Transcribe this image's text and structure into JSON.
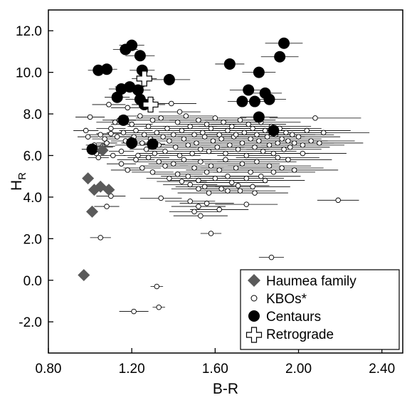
{
  "chart_data": {
    "type": "scatter",
    "xlabel": "B-R",
    "ylabel_main": "H",
    "ylabel_sub": "R",
    "xlim": [
      0.8,
      2.5
    ],
    "ylim": [
      -3.5,
      13.0
    ],
    "x_ticks": [
      {
        "value": 0.8,
        "label": "0.80"
      },
      {
        "value": 1.2,
        "label": "1.20"
      },
      {
        "value": 1.6,
        "label": "1.60"
      },
      {
        "value": 2.0,
        "label": "2.00"
      },
      {
        "value": 2.4,
        "label": "2.40"
      }
    ],
    "y_ticks": [
      {
        "value": 12.0,
        "label": "12.0"
      },
      {
        "value": 10.0,
        "label": "10.0"
      },
      {
        "value": 8.0,
        "label": "8.0"
      },
      {
        "value": 6.0,
        "label": "6.0"
      },
      {
        "value": 4.0,
        "label": "4.0"
      },
      {
        "value": 2.0,
        "label": "2.0"
      },
      {
        "value": 0.0,
        "label": "0.0"
      },
      {
        "value": -2.0,
        "label": "-2.0"
      }
    ],
    "legend_position": "bottom-right",
    "series": [
      {
        "name": "KBOs*",
        "marker": "open-circle",
        "color": "#000000",
        "points": [
          [
            0.98,
            7.2,
            0.06
          ],
          [
            0.99,
            6.9,
            0.05
          ],
          [
            1.0,
            7.85,
            0.07
          ],
          [
            1.01,
            6.3,
            0.05
          ],
          [
            1.02,
            6.5,
            0.04
          ],
          [
            1.03,
            6.1,
            0.04
          ],
          [
            1.04,
            5.9,
            0.05
          ],
          [
            1.05,
            7.0,
            0.06
          ],
          [
            1.06,
            6.4,
            0.05
          ],
          [
            1.07,
            6.8,
            0.06
          ],
          [
            1.08,
            6.6,
            0.05
          ],
          [
            1.09,
            8.45,
            0.08
          ],
          [
            1.1,
            7.3,
            0.07
          ],
          [
            1.11,
            6.0,
            0.06
          ],
          [
            1.12,
            7.6,
            0.09
          ],
          [
            1.13,
            6.9,
            0.07
          ],
          [
            1.14,
            7.7,
            0.08
          ],
          [
            1.15,
            6.2,
            0.06
          ],
          [
            1.16,
            7.1,
            0.08
          ],
          [
            1.17,
            6.7,
            0.07
          ],
          [
            1.18,
            8.3,
            0.08
          ],
          [
            1.19,
            6.5,
            0.07
          ],
          [
            1.2,
            7.5,
            0.1
          ],
          [
            1.21,
            6.9,
            0.09
          ],
          [
            1.22,
            7.2,
            0.08
          ],
          [
            1.23,
            6.0,
            0.07
          ],
          [
            1.24,
            7.9,
            0.1
          ],
          [
            1.25,
            6.6,
            0.08
          ],
          [
            1.26,
            7.0,
            0.09
          ],
          [
            1.27,
            6.3,
            0.08
          ],
          [
            1.28,
            7.4,
            0.1
          ],
          [
            1.29,
            6.8,
            0.09
          ],
          [
            1.3,
            7.7,
            0.11
          ],
          [
            1.31,
            6.1,
            0.08
          ],
          [
            1.32,
            7.1,
            0.1
          ],
          [
            1.33,
            6.5,
            0.09
          ],
          [
            1.34,
            7.8,
            0.12
          ],
          [
            1.35,
            6.9,
            0.1
          ],
          [
            1.36,
            6.2,
            0.09
          ],
          [
            1.37,
            7.3,
            0.11
          ],
          [
            1.38,
            6.7,
            0.1
          ],
          [
            1.39,
            8.5,
            0.12
          ],
          [
            1.4,
            7.0,
            0.12
          ],
          [
            1.41,
            6.4,
            0.1
          ],
          [
            1.42,
            7.6,
            0.12
          ],
          [
            1.43,
            6.0,
            0.1
          ],
          [
            1.44,
            7.2,
            0.12
          ],
          [
            1.45,
            6.8,
            0.11
          ],
          [
            1.46,
            7.9,
            0.13
          ],
          [
            1.47,
            6.5,
            0.11
          ],
          [
            1.48,
            7.4,
            0.13
          ],
          [
            1.49,
            6.1,
            0.11
          ],
          [
            1.5,
            7.0,
            0.13
          ],
          [
            1.51,
            6.6,
            0.12
          ],
          [
            1.52,
            7.7,
            0.14
          ],
          [
            1.53,
            6.3,
            0.12
          ],
          [
            1.54,
            7.1,
            0.14
          ],
          [
            1.55,
            6.9,
            0.13
          ],
          [
            1.56,
            7.5,
            0.14
          ],
          [
            1.57,
            6.2,
            0.12
          ],
          [
            1.58,
            7.3,
            0.15
          ],
          [
            1.59,
            6.7,
            0.13
          ],
          [
            1.6,
            7.8,
            0.15
          ],
          [
            1.61,
            6.4,
            0.13
          ],
          [
            1.62,
            7.0,
            0.15
          ],
          [
            1.63,
            6.8,
            0.14
          ],
          [
            1.64,
            7.6,
            0.16
          ],
          [
            1.65,
            6.1,
            0.13
          ],
          [
            1.66,
            7.2,
            0.16
          ],
          [
            1.67,
            6.5,
            0.14
          ],
          [
            1.68,
            7.4,
            0.16
          ],
          [
            1.69,
            6.9,
            0.15
          ],
          [
            1.7,
            7.0,
            0.17
          ],
          [
            1.71,
            6.3,
            0.15
          ],
          [
            1.72,
            7.7,
            0.17
          ],
          [
            1.73,
            6.6,
            0.15
          ],
          [
            1.74,
            7.1,
            0.17
          ],
          [
            1.75,
            6.0,
            0.14
          ],
          [
            1.76,
            7.5,
            0.18
          ],
          [
            1.77,
            6.8,
            0.16
          ],
          [
            1.78,
            7.3,
            0.18
          ],
          [
            1.79,
            6.4,
            0.16
          ],
          [
            1.8,
            7.0,
            0.18
          ],
          [
            1.81,
            6.7,
            0.17
          ],
          [
            1.82,
            7.6,
            0.19
          ],
          [
            1.83,
            6.2,
            0.16
          ],
          [
            1.84,
            7.2,
            0.19
          ],
          [
            1.85,
            6.9,
            0.18
          ],
          [
            1.86,
            6.5,
            0.17
          ],
          [
            1.87,
            7.4,
            0.19
          ],
          [
            1.88,
            6.1,
            0.17
          ],
          [
            1.89,
            7.0,
            0.19
          ],
          [
            1.9,
            6.6,
            0.18
          ],
          [
            1.91,
            7.3,
            0.2
          ],
          [
            1.92,
            6.8,
            0.19
          ],
          [
            1.93,
            6.3,
            0.18
          ],
          [
            1.94,
            7.1,
            0.2
          ],
          [
            1.95,
            6.7,
            0.19
          ],
          [
            1.96,
            6.4,
            0.19
          ],
          [
            1.97,
            7.0,
            0.2
          ],
          [
            1.98,
            6.6,
            0.19
          ],
          [
            2.0,
            6.9,
            0.2
          ],
          [
            2.02,
            6.5,
            0.2
          ],
          [
            2.04,
            7.2,
            0.21
          ],
          [
            2.06,
            6.7,
            0.21
          ],
          [
            2.08,
            7.8,
            0.22
          ],
          [
            2.1,
            6.6,
            0.21
          ],
          [
            2.12,
            7.1,
            0.22
          ],
          [
            1.15,
            5.6,
            0.07
          ],
          [
            1.18,
            5.3,
            0.08
          ],
          [
            1.22,
            5.8,
            0.09
          ],
          [
            1.25,
            5.4,
            0.09
          ],
          [
            1.28,
            5.9,
            0.1
          ],
          [
            1.3,
            5.2,
            0.1
          ],
          [
            1.33,
            5.7,
            0.11
          ],
          [
            1.36,
            5.5,
            0.11
          ],
          [
            1.38,
            4.9,
            0.11
          ],
          [
            1.4,
            5.6,
            0.12
          ],
          [
            1.42,
            5.1,
            0.12
          ],
          [
            1.45,
            5.8,
            0.13
          ],
          [
            1.47,
            5.0,
            0.13
          ],
          [
            1.48,
            4.6,
            0.13
          ],
          [
            1.5,
            5.4,
            0.14
          ],
          [
            1.52,
            4.8,
            0.14
          ],
          [
            1.53,
            5.7,
            0.14
          ],
          [
            1.55,
            4.5,
            0.14
          ],
          [
            1.56,
            5.2,
            0.15
          ],
          [
            1.57,
            4.2,
            0.15
          ],
          [
            1.58,
            5.5,
            0.15
          ],
          [
            1.6,
            4.9,
            0.15
          ],
          [
            1.62,
            5.3,
            0.16
          ],
          [
            1.63,
            4.4,
            0.16
          ],
          [
            1.65,
            5.8,
            0.16
          ],
          [
            1.66,
            5.0,
            0.16
          ],
          [
            1.68,
            4.7,
            0.17
          ],
          [
            1.7,
            5.4,
            0.17
          ],
          [
            1.72,
            4.3,
            0.17
          ],
          [
            1.73,
            5.6,
            0.18
          ],
          [
            1.75,
            4.9,
            0.18
          ],
          [
            1.77,
            5.2,
            0.18
          ],
          [
            1.78,
            4.5,
            0.18
          ],
          [
            1.8,
            5.7,
            0.19
          ],
          [
            1.82,
            5.0,
            0.19
          ],
          [
            1.84,
            4.8,
            0.19
          ],
          [
            1.86,
            5.5,
            0.2
          ],
          [
            1.88,
            5.2,
            0.2
          ],
          [
            1.9,
            5.9,
            0.2
          ],
          [
            1.92,
            5.4,
            0.2
          ],
          [
            1.95,
            5.8,
            0.21
          ],
          [
            1.98,
            5.3,
            0.21
          ],
          [
            2.02,
            6.1,
            0.21
          ],
          [
            1.08,
            3.55,
            0.06
          ],
          [
            1.1,
            4.05,
            0.07
          ],
          [
            1.34,
            3.95,
            0.1
          ],
          [
            1.48,
            3.8,
            0.12
          ],
          [
            1.5,
            3.3,
            0.12
          ],
          [
            1.52,
            3.55,
            0.13
          ],
          [
            1.53,
            3.1,
            0.13
          ],
          [
            1.56,
            3.7,
            0.13
          ],
          [
            1.62,
            3.4,
            0.14
          ],
          [
            1.75,
            3.65,
            0.15
          ],
          [
            1.52,
            4.4,
            0.13
          ],
          [
            1.66,
            4.3,
            0.15
          ],
          [
            1.71,
            4.55,
            0.15
          ],
          [
            1.79,
            4.2,
            0.16
          ],
          [
            1.44,
            4.75,
            0.12
          ],
          [
            1.05,
            2.05,
            0.05
          ],
          [
            1.58,
            2.25,
            0.05
          ],
          [
            1.87,
            1.1,
            0.06
          ],
          [
            2.19,
            3.85,
            0.1
          ],
          [
            1.32,
            -0.3,
            0.03
          ],
          [
            1.33,
            -1.3,
            0.03
          ],
          [
            1.21,
            -1.5,
            0.07
          ],
          [
            1.06,
            6.45,
            0.06
          ],
          [
            1.1,
            7.05,
            0.07
          ],
          [
            1.43,
            8.1,
            0.1
          ]
        ]
      },
      {
        "name": "Haumea family",
        "marker": "diamond",
        "color": "#5a5a5a",
        "points": [
          [
            0.99,
            4.9
          ],
          [
            1.01,
            3.3
          ],
          [
            1.02,
            4.35
          ],
          [
            1.05,
            4.5
          ],
          [
            1.09,
            4.35
          ],
          [
            0.97,
            0.25
          ],
          [
            1.06,
            6.25
          ]
        ]
      },
      {
        "name": "Centaurs",
        "marker": "filled-circle",
        "color": "#000000",
        "points": [
          [
            1.04,
            10.1,
            0.05
          ],
          [
            1.08,
            10.15,
            0.05
          ],
          [
            1.17,
            11.1,
            0.06
          ],
          [
            1.2,
            11.3,
            0.06
          ],
          [
            1.24,
            10.8,
            0.07
          ],
          [
            1.25,
            10.1,
            0.06
          ],
          [
            1.15,
            9.2,
            0.06
          ],
          [
            1.19,
            9.3,
            0.07
          ],
          [
            1.23,
            9.15,
            0.06
          ],
          [
            1.13,
            8.8,
            0.06
          ],
          [
            1.24,
            8.7,
            0.07
          ],
          [
            1.26,
            8.45,
            0.06
          ],
          [
            1.16,
            7.7,
            0.06
          ],
          [
            1.38,
            9.65,
            0.1
          ],
          [
            1.01,
            6.3,
            0.05
          ],
          [
            1.2,
            6.6,
            0.05
          ],
          [
            1.3,
            6.55,
            0.06
          ],
          [
            1.67,
            10.4,
            0.07
          ],
          [
            1.81,
            10.0,
            0.08
          ],
          [
            1.76,
            9.15,
            0.09
          ],
          [
            1.73,
            8.6,
            0.07
          ],
          [
            1.79,
            8.6,
            0.08
          ],
          [
            1.84,
            9.0,
            0.08
          ],
          [
            1.86,
            8.7,
            0.08
          ],
          [
            1.81,
            7.85,
            0.09
          ],
          [
            1.93,
            11.4,
            0.09
          ],
          [
            1.91,
            10.75,
            0.09
          ],
          [
            1.88,
            7.2,
            0.07
          ]
        ]
      },
      {
        "name": "Retrograde",
        "marker": "open-cross",
        "color": "#000000",
        "points": [
          [
            1.26,
            9.7,
            0.06
          ],
          [
            1.29,
            8.45,
            0.07
          ]
        ]
      }
    ],
    "legend": [
      {
        "name": "Haumea family",
        "marker": "diamond",
        "text_color": "#666666"
      },
      {
        "name": "KBOs*",
        "marker": "open-circle",
        "text_color": "#666666"
      },
      {
        "name": "Centaurs",
        "marker": "filled-circle",
        "text_color": "#000000"
      },
      {
        "name": "Retrograde",
        "marker": "open-cross",
        "text_color": "#000000"
      }
    ]
  }
}
